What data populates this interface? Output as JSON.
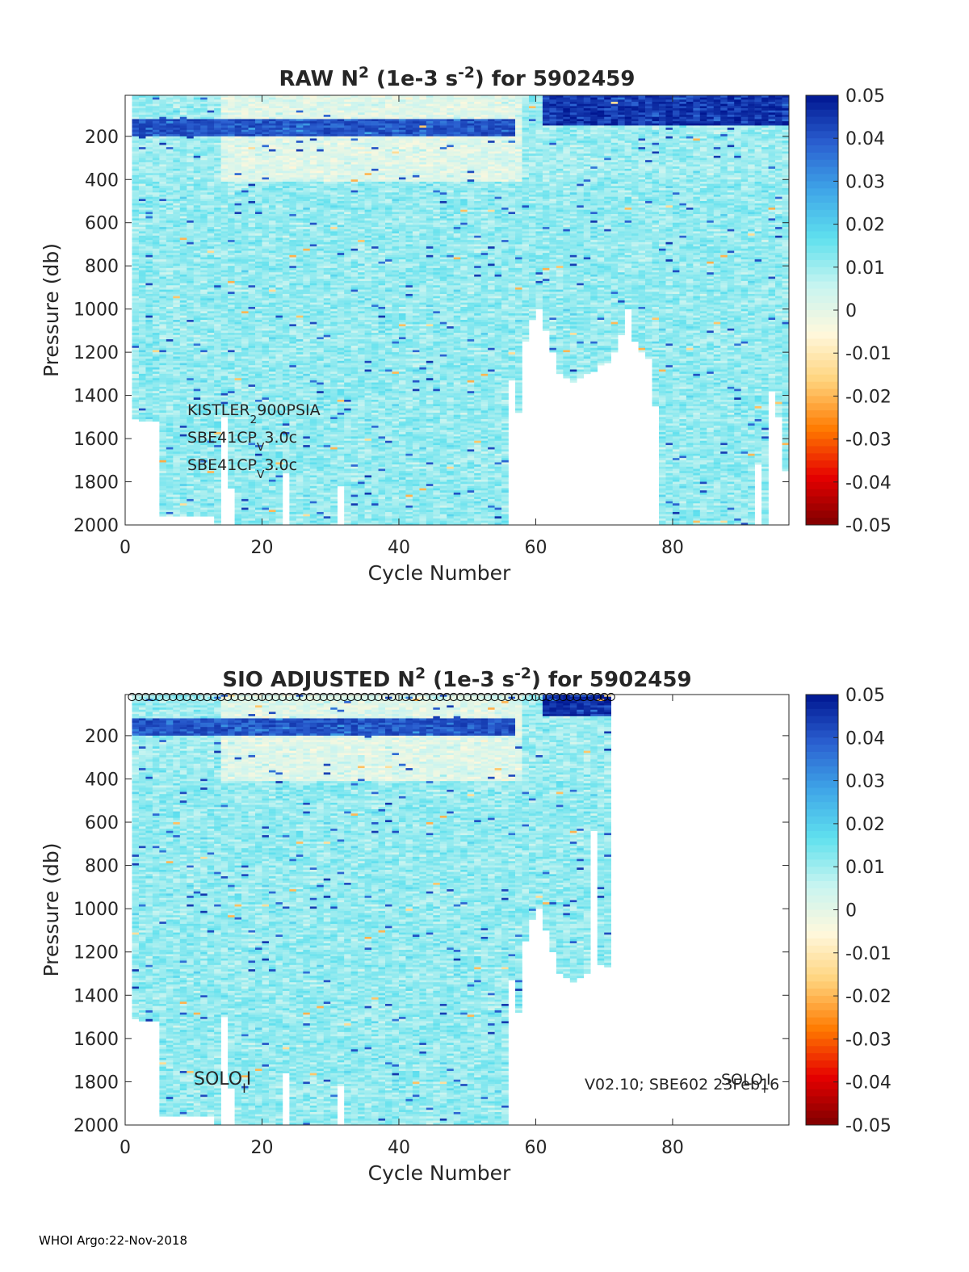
{
  "footer": "WHOI Argo:22-Nov-2018",
  "colorbar": {
    "min": -0.05,
    "max": 0.05,
    "ticks": [
      "0.05",
      "0.04",
      "0.03",
      "0.02",
      "0.01",
      "0",
      "-0.01",
      "-0.02",
      "-0.03",
      "-0.04",
      "-0.05"
    ],
    "colormap": [
      "#7f0000",
      "#e60000",
      "#ff7a00",
      "#ffd27a",
      "#fff8dc",
      "#c8f4f0",
      "#5fe0ee",
      "#3fa6e8",
      "#2a5fd0",
      "#001690"
    ]
  },
  "chart_data": [
    {
      "type": "heatmap",
      "title_parts": [
        "RAW N",
        "2",
        " (1e-3 s",
        "-2",
        ") for 5902459"
      ],
      "xlabel": "Cycle Number",
      "ylabel": "Pressure (db)",
      "xlim": [
        0,
        97
      ],
      "ylim": [
        2000,
        10
      ],
      "xticks": [
        0,
        20,
        40,
        60,
        80
      ],
      "yticks": [
        200,
        400,
        600,
        800,
        1000,
        1200,
        1400,
        1600,
        1800,
        2000
      ],
      "annotations": [
        {
          "parts": [
            "KISTLER",
            "2",
            "900PSIA"
          ]
        },
        {
          "parts": [
            "SBE41CP",
            "V",
            "3.0c"
          ]
        },
        {
          "parts": [
            "SBE41CP",
            "V",
            "3.0c"
          ]
        }
      ],
      "max_depth_by_cycle": [
        {
          "x": [
            1,
            1.99
          ],
          "depth": 1510
        },
        {
          "x": [
            2,
            4.99
          ],
          "depth": 1520
        },
        {
          "x": [
            5,
            12.99
          ],
          "depth": 1960
        },
        {
          "x": [
            13,
            13.99
          ],
          "depth": 2000
        },
        {
          "x": [
            14,
            14.99
          ],
          "depth": 1500
        },
        {
          "x": [
            15,
            15.99
          ],
          "depth": 1830
        },
        {
          "x": [
            16,
            22.99
          ],
          "depth": 2000
        },
        {
          "x": [
            23,
            23.99
          ],
          "depth": 1760
        },
        {
          "x": [
            24,
            30.99
          ],
          "depth": 2000
        },
        {
          "x": [
            31,
            31.99
          ],
          "depth": 1820
        },
        {
          "x": [
            32,
            55.99
          ],
          "depth": 2000
        },
        {
          "x": [
            56,
            56.99
          ],
          "depth": 1330
        },
        {
          "x": [
            57,
            57.99
          ],
          "depth": 1480
        },
        {
          "x": [
            58,
            58.99
          ],
          "depth": 1150
        },
        {
          "x": [
            59,
            59.99
          ],
          "depth": 1050
        },
        {
          "x": [
            60,
            60.99
          ],
          "depth": 1000
        },
        {
          "x": [
            61,
            61.99
          ],
          "depth": 1100
        },
        {
          "x": [
            62,
            62.99
          ],
          "depth": 1200
        },
        {
          "x": [
            63,
            63.99
          ],
          "depth": 1300
        },
        {
          "x": [
            64,
            64.99
          ],
          "depth": 1320
        },
        {
          "x": [
            65,
            65.99
          ],
          "depth": 1340
        },
        {
          "x": [
            66,
            66.99
          ],
          "depth": 1320
        },
        {
          "x": [
            67,
            67.99
          ],
          "depth": 1300
        },
        {
          "x": [
            68,
            68.99
          ],
          "depth": 1290
        },
        {
          "x": [
            69,
            69.99
          ],
          "depth": 1260
        },
        {
          "x": [
            70,
            70.99
          ],
          "depth": 1250
        },
        {
          "x": [
            71,
            71.99
          ],
          "depth": 1200
        },
        {
          "x": [
            72,
            72.99
          ],
          "depth": 1120
        },
        {
          "x": [
            73,
            73.99
          ],
          "depth": 1000
        },
        {
          "x": [
            74,
            74.99
          ],
          "depth": 1150
        },
        {
          "x": [
            75,
            75.99
          ],
          "depth": 1200
        },
        {
          "x": [
            76,
            76.99
          ],
          "depth": 1230
        },
        {
          "x": [
            77,
            77.99
          ],
          "depth": 1450
        },
        {
          "x": [
            78,
            91.99
          ],
          "depth": 2000
        },
        {
          "x": [
            92,
            92.99
          ],
          "depth": 1720
        },
        {
          "x": [
            93,
            93.99
          ],
          "depth": 2000
        },
        {
          "x": [
            94,
            94.99
          ],
          "depth": 1380
        },
        {
          "x": [
            95,
            95.99
          ],
          "depth": 1500
        },
        {
          "x": [
            96,
            96.99
          ],
          "depth": 1750
        }
      ],
      "features": [
        {
          "kind": "strong-positive-band",
          "cycles": [
            1,
            56
          ],
          "depth": [
            120,
            190
          ],
          "value": 0.045
        },
        {
          "kind": "strong-positive-band",
          "cycles": [
            61,
            96
          ],
          "depth": [
            10,
            140
          ],
          "value": 0.05
        },
        {
          "kind": "near-zero-surface",
          "cycles": [
            14,
            57
          ],
          "depth": [
            10,
            400
          ],
          "value": 0.001
        },
        {
          "kind": "interior-typical",
          "cycles": [
            1,
            96
          ],
          "depth": [
            400,
            2000
          ],
          "value": 0.011
        }
      ]
    },
    {
      "type": "heatmap",
      "title_parts": [
        "SIO  ADJUSTED N",
        "2",
        " (1e-3 s",
        "-2",
        ") for 5902459"
      ],
      "xlabel": "Cycle Number",
      "ylabel": "Pressure (db)",
      "xlim": [
        0,
        97
      ],
      "ylim": [
        2000,
        10
      ],
      "xticks": [
        0,
        20,
        40,
        60,
        80
      ],
      "yticks": [
        200,
        400,
        600,
        800,
        1000,
        1200,
        1400,
        1600,
        1800,
        2000
      ],
      "annotations": [
        {
          "parts": [
            "SOLO",
            "I",
            "I"
          ]
        },
        {
          "parts": [
            "V02.10; SBE602 23Feb16"
          ]
        },
        {
          "parts": [
            "SOLO",
            "I",
            "I"
          ]
        }
      ],
      "surface_markers": {
        "x_start": 1,
        "x_end": 71,
        "step": 1,
        "depth": 10
      },
      "max_depth_by_cycle": [
        {
          "x": [
            1,
            1.99
          ],
          "depth": 1510
        },
        {
          "x": [
            2,
            4.99
          ],
          "depth": 1520
        },
        {
          "x": [
            5,
            12.99
          ],
          "depth": 1960
        },
        {
          "x": [
            13,
            13.99
          ],
          "depth": 2000
        },
        {
          "x": [
            14,
            14.99
          ],
          "depth": 1500
        },
        {
          "x": [
            15,
            15.99
          ],
          "depth": 1830
        },
        {
          "x": [
            16,
            22.99
          ],
          "depth": 2000
        },
        {
          "x": [
            23,
            23.99
          ],
          "depth": 1760
        },
        {
          "x": [
            24,
            30.99
          ],
          "depth": 2000
        },
        {
          "x": [
            31,
            31.99
          ],
          "depth": 1820
        },
        {
          "x": [
            32,
            55.99
          ],
          "depth": 2000
        },
        {
          "x": [
            56,
            56.99
          ],
          "depth": 1330
        },
        {
          "x": [
            57,
            57.99
          ],
          "depth": 1480
        },
        {
          "x": [
            58,
            58.99
          ],
          "depth": 1150
        },
        {
          "x": [
            59,
            59.99
          ],
          "depth": 1050
        },
        {
          "x": [
            60,
            60.99
          ],
          "depth": 1000
        },
        {
          "x": [
            61,
            61.99
          ],
          "depth": 1100
        },
        {
          "x": [
            62,
            62.99
          ],
          "depth": 1200
        },
        {
          "x": [
            63,
            63.99
          ],
          "depth": 1300
        },
        {
          "x": [
            64,
            64.99
          ],
          "depth": 1320
        },
        {
          "x": [
            65,
            65.99
          ],
          "depth": 1340
        },
        {
          "x": [
            66,
            66.99
          ],
          "depth": 1320
        },
        {
          "x": [
            67,
            67.99
          ],
          "depth": 1300
        },
        {
          "x": [
            68,
            68.99
          ],
          "depth": 640
        },
        {
          "x": [
            69,
            69.99
          ],
          "depth": 1260
        },
        {
          "x": [
            70,
            70.99
          ],
          "depth": 1270
        }
      ],
      "features": [
        {
          "kind": "strong-positive-band",
          "cycles": [
            1,
            56
          ],
          "depth": [
            120,
            190
          ],
          "value": 0.045
        },
        {
          "kind": "strong-positive-band",
          "cycles": [
            61,
            70
          ],
          "depth": [
            10,
            100
          ],
          "value": 0.05
        },
        {
          "kind": "near-zero-surface",
          "cycles": [
            14,
            57
          ],
          "depth": [
            10,
            400
          ],
          "value": 0.001
        },
        {
          "kind": "interior-typical",
          "cycles": [
            1,
            70
          ],
          "depth": [
            400,
            2000
          ],
          "value": 0.011
        }
      ]
    }
  ]
}
